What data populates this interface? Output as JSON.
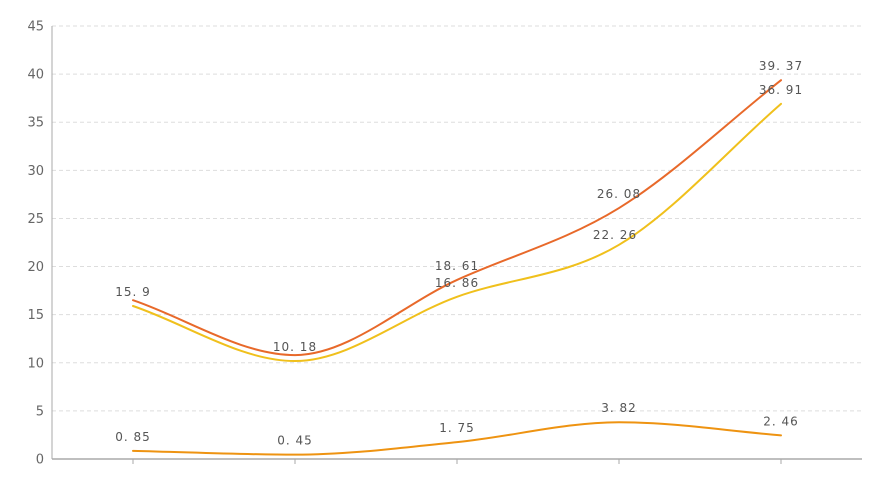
{
  "chart_data": {
    "type": "line",
    "smooth": true,
    "categories": [
      "",
      "",
      "",
      "",
      ""
    ],
    "title": "",
    "xlabel": "",
    "ylabel": "",
    "ylim": [
      0,
      45
    ],
    "yticks": [
      0,
      5,
      10,
      15,
      20,
      25,
      30,
      35,
      40,
      45
    ],
    "grid": "horizontal dashed",
    "legend": "none",
    "series": [
      {
        "values": [
          16.5,
          10.8,
          18.61,
          26.08,
          39.37
        ],
        "labels": [
          "",
          "",
          "18. 61",
          "26. 08",
          "39. 37"
        ],
        "color": "#e8692a"
      },
      {
        "values": [
          15.9,
          10.18,
          16.86,
          22.26,
          36.91
        ],
        "labels": [
          "15. 9",
          "10. 18",
          "16. 86",
          "22. 26",
          "36. 91"
        ],
        "color": "#f0c01c"
      },
      {
        "values": [
          0.85,
          0.45,
          1.75,
          3.82,
          2.46
        ],
        "labels": [
          "0. 85",
          "0. 45",
          "1. 75",
          "3. 82",
          "2. 46"
        ],
        "color": "#ee9311"
      }
    ],
    "colors": {
      "grid": "#dddddd",
      "axis": "#aaaaaa",
      "tick_text": "#666666",
      "label_text": "#555555"
    }
  }
}
